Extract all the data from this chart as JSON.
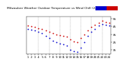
{
  "title": "Milwaukee Weather Outdoor Temperature vs Wind Chill (24 Hours)",
  "outdoor_temp": [
    46,
    45,
    44,
    43,
    42,
    40,
    38,
    36,
    35,
    34,
    33,
    32,
    28,
    26,
    25,
    30,
    35,
    40,
    44,
    47,
    50,
    52,
    51,
    50
  ],
  "wind_chill": [
    42,
    41,
    40,
    38,
    36,
    33,
    30,
    27,
    25,
    23,
    22,
    20,
    15,
    13,
    12,
    18,
    25,
    33,
    38,
    42,
    46,
    48,
    47,
    46
  ],
  "hours": [
    1,
    2,
    3,
    4,
    5,
    6,
    7,
    8,
    9,
    10,
    11,
    12,
    13,
    14,
    15,
    16,
    17,
    18,
    19,
    20,
    21,
    22,
    23,
    24
  ],
  "temp_color": "#cc0000",
  "chill_color": "#0000cc",
  "background_color": "#ffffff",
  "ylim": [
    10,
    58
  ],
  "ytick_vals": [
    15,
    25,
    35,
    45,
    55
  ],
  "grid_color": "#888888",
  "marker_size": 1.8,
  "title_fontsize": 3.2,
  "tick_fontsize": 3.0,
  "grid_positions": [
    4,
    7,
    10,
    13,
    16,
    19,
    22
  ]
}
